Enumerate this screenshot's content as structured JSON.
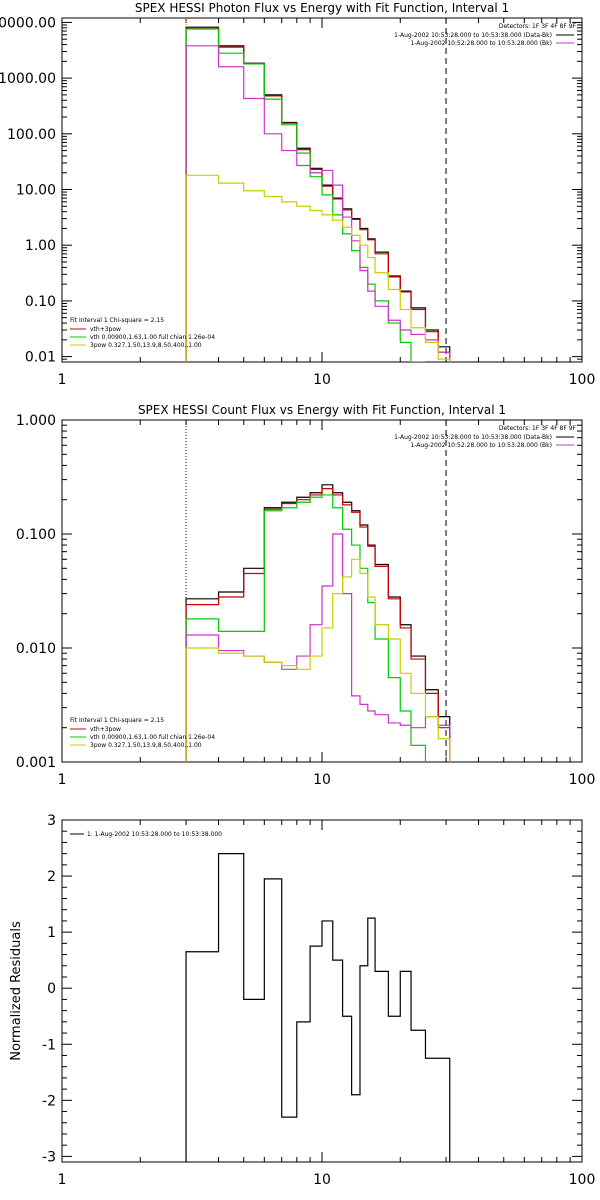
{
  "chart_data": [
    {
      "type": "line",
      "title": "SPEX HESSI Photon Flux vs Energy with Fit Function, Interval 1",
      "xscale": "log",
      "yscale": "log",
      "xlim": [
        1,
        100
      ],
      "ylim": [
        0.008,
        12000
      ],
      "x_tick_labels": [
        "1",
        "10",
        "100"
      ],
      "y_tick_labels": [
        "0.01",
        "0.10",
        "1.00",
        "10.00",
        "100.00",
        "1000.00",
        "10000.00"
      ],
      "y_tick_values": [
        0.01,
        0.1,
        1,
        10,
        100,
        1000,
        10000
      ],
      "annotations": {
        "header": "Detectors: 1F 3F 4F 8F 9F",
        "legend_top": [
          {
            "text": "1-Aug-2002 10:53:28.000 to 10:53:38.000 (Data-Bk)",
            "color": "#000000"
          },
          {
            "text": "1-Aug-2002 10:52:28.000 to 10:53:28.000 (Bk)",
            "color": "#cc33cc"
          }
        ],
        "fit_heading": "Fit Interval 1   Chi-square = 2.15",
        "fit_legend": [
          {
            "text": "vth+3pow",
            "color": "#cc0000"
          },
          {
            "text": "vth 0.00900,1.63,1.00   full chian 1.26e-04",
            "color": "#00cc00"
          },
          {
            "text": "3pow 0.327,1.50,13.9,8.50,400.,1.00",
            "color": "#cccc00"
          }
        ]
      },
      "vlines": [
        {
          "x": 3,
          "style": "dotted",
          "color": "#cc8800"
        },
        {
          "x": 30,
          "style": "dashed",
          "color": "#000000"
        }
      ],
      "x_edges": [
        3,
        4,
        5,
        6,
        7,
        8,
        9,
        10,
        11,
        12,
        13,
        14,
        15,
        16,
        18,
        20,
        22,
        25,
        28,
        31
      ],
      "series": [
        {
          "color": "#000000",
          "values": [
            8200,
            3800,
            1850,
            500,
            160,
            55,
            24,
            12,
            7,
            4.5,
            3,
            2,
            1.3,
            0.75,
            0.28,
            0.15,
            0.075,
            0.03,
            0.015
          ]
        },
        {
          "color": "#cc0000",
          "values": [
            8000,
            3600,
            1800,
            480,
            155,
            52,
            23,
            11.5,
            6.8,
            4.3,
            2.9,
            1.9,
            1.25,
            0.7,
            0.27,
            0.145,
            0.07,
            0.028,
            0.012
          ]
        },
        {
          "color": "#00cc00",
          "values": [
            7600,
            2800,
            1800,
            420,
            145,
            45,
            17,
            8,
            3.5,
            1.6,
            0.8,
            0.4,
            0.2,
            0.1,
            0.04,
            0.018,
            0.008
          ]
        },
        {
          "color": "#cc33cc",
          "values": [
            3800,
            1600,
            430,
            100,
            50,
            27,
            20,
            22,
            12,
            3.2,
            1.2,
            0.35,
            0.15,
            0.08,
            0.045,
            0.03,
            0.025,
            0.02,
            0.012
          ]
        },
        {
          "color": "#cccc00",
          "values": [
            18,
            13,
            9.5,
            7.5,
            6,
            5,
            4.2,
            3.5,
            2.8,
            2.1,
            1.5,
            1.0,
            0.6,
            0.32,
            0.16,
            0.07,
            0.033,
            0.018,
            0.009
          ]
        }
      ]
    },
    {
      "type": "line",
      "title": "SPEX HESSI Count Flux vs Energy with Fit Function, Interval 1",
      "xscale": "log",
      "yscale": "log",
      "xlim": [
        1,
        100
      ],
      "ylim": [
        0.001,
        1.0
      ],
      "ylabel": "",
      "x_tick_labels": [
        "1",
        "10",
        "100"
      ],
      "y_tick_labels": [
        "0.001",
        "0.010",
        "0.100",
        "1.000"
      ],
      "y_tick_values": [
        0.001,
        0.01,
        0.1,
        1
      ],
      "annotations": {
        "header": "Detectors: 1F 3F 4F 8F 9F",
        "legend_top": [
          {
            "text": "1-Aug-2002 10:53:28.000 to 10:53:38.000 (Data-Bk)",
            "color": "#000000"
          },
          {
            "text": "1-Aug-2002 10:52:28.000 to 10:53:28.000 (Bk)",
            "color": "#cc33cc"
          }
        ],
        "fit_heading": "Fit Interval 1   Chi-square = 2.15",
        "fit_legend": [
          {
            "text": "vth+3pow",
            "color": "#cc0000"
          },
          {
            "text": "vth 0.00900,1.63,1.00   full chian 1.26e-04",
            "color": "#00cc00"
          },
          {
            "text": "3pow 0.327,1.50,13.9,8.50,400.,1.00",
            "color": "#cccc00"
          }
        ]
      },
      "vlines": [
        {
          "x": 3,
          "style": "dotted",
          "color": "#000000"
        },
        {
          "x": 30,
          "style": "dashed",
          "color": "#000000"
        }
      ],
      "x_edges": [
        3,
        4,
        5,
        6,
        7,
        8,
        9,
        10,
        11,
        12,
        13,
        14,
        15,
        16,
        18,
        20,
        22,
        25,
        28,
        31
      ],
      "series": [
        {
          "color": "#000000",
          "values": [
            0.027,
            0.031,
            0.05,
            0.17,
            0.19,
            0.21,
            0.23,
            0.27,
            0.23,
            0.19,
            0.16,
            0.12,
            0.08,
            0.054,
            0.028,
            0.016,
            0.0085,
            0.0043,
            0.0025
          ]
        },
        {
          "color": "#cc0000",
          "values": [
            0.024,
            0.028,
            0.045,
            0.165,
            0.185,
            0.2,
            0.22,
            0.25,
            0.22,
            0.18,
            0.155,
            0.115,
            0.078,
            0.052,
            0.027,
            0.015,
            0.008,
            0.004,
            0.002
          ]
        },
        {
          "color": "#00cc00",
          "values": [
            0.018,
            0.014,
            0.014,
            0.16,
            0.17,
            0.19,
            0.21,
            0.22,
            0.17,
            0.11,
            0.08,
            0.05,
            0.025,
            0.012,
            0.0055,
            0.0028,
            0.0014
          ]
        },
        {
          "color": "#cc33cc",
          "values": [
            0.013,
            0.0095,
            0.0085,
            0.0075,
            0.0065,
            0.0085,
            0.016,
            0.035,
            0.1,
            0.03,
            0.0038,
            0.0032,
            0.0028,
            0.0026,
            0.0022,
            0.0021,
            0.002,
            0.0025,
            0.0021
          ]
        },
        {
          "color": "#cccc00",
          "values": [
            0.01,
            0.009,
            0.0085,
            0.0075,
            0.007,
            0.0065,
            0.0085,
            0.015,
            0.03,
            0.042,
            0.06,
            0.045,
            0.028,
            0.016,
            0.012,
            0.006,
            0.004,
            0.0025,
            0.0016
          ]
        }
      ]
    },
    {
      "type": "line",
      "title": "",
      "xscale": "log",
      "yscale": "linear",
      "xlim": [
        1,
        100
      ],
      "ylim": [
        -3.1,
        3.0
      ],
      "ylabel": "Normalized Residuals",
      "x_tick_labels": [
        "1",
        "10",
        "100"
      ],
      "y_tick_labels": [
        "3",
        "2",
        "1",
        "0",
        "-1",
        "-2",
        "-3"
      ],
      "y_tick_values": [
        3,
        2,
        1,
        0,
        -1,
        -2,
        -3
      ],
      "legend": [
        {
          "text": "1.  1-Aug-2002 10:53:28.000 to 10:53:38.000",
          "color": "#000000"
        }
      ],
      "x_edges": [
        3,
        4,
        5,
        6,
        7,
        8,
        9,
        10,
        11,
        12,
        13,
        14,
        15,
        16,
        18,
        20,
        22,
        25,
        28,
        31
      ],
      "series": [
        {
          "color": "#000000",
          "values": [
            0.65,
            2.4,
            -0.2,
            1.95,
            -2.3,
            -0.6,
            0.75,
            1.2,
            0.5,
            -0.5,
            -1.9,
            0.4,
            1.25,
            0.3,
            -0.5,
            0.3,
            -0.75,
            -1.25,
            -1.25
          ]
        }
      ]
    }
  ]
}
